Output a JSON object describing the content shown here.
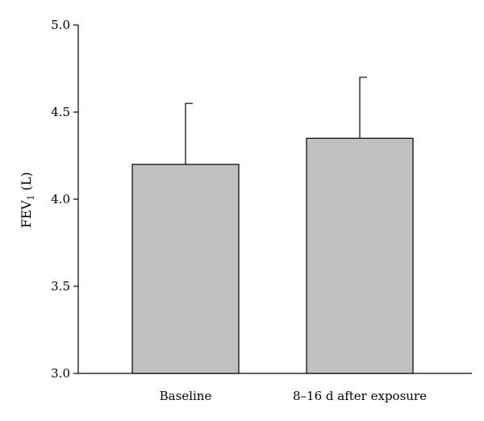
{
  "chart_data": {
    "type": "bar",
    "categories": [
      "Baseline",
      "8–16 d after exposure"
    ],
    "values": [
      4.2,
      4.35
    ],
    "error_upper": [
      4.55,
      4.7
    ],
    "ylabel_main": "FEV",
    "ylabel_sub": "1",
    "ylabel_unit": " (L)",
    "ylim": [
      3.0,
      5.0
    ],
    "yticks": [
      "3.0",
      "3.5",
      "4.0",
      "4.5",
      "5.0"
    ],
    "ytick_values": [
      3.0,
      3.5,
      4.0,
      4.5,
      5.0
    ],
    "bar_color": "#c0c0c0",
    "grid": false
  }
}
